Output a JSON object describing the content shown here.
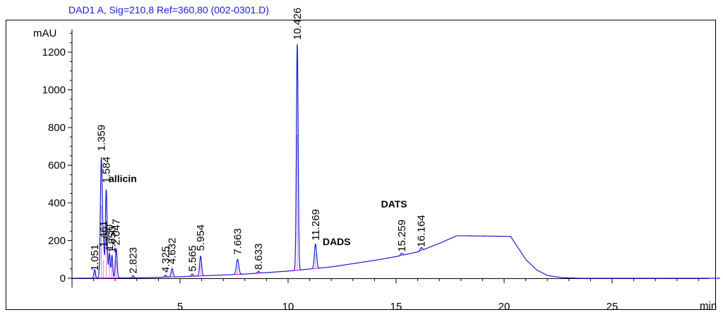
{
  "chart_data": {
    "type": "line",
    "title": "DAD1 A, Sig=210,8 Ref=360,80 (002-0301.D)",
    "xlabel": "min",
    "ylabel": "mAU",
    "xlim": [
      0,
      30
    ],
    "ylim": [
      -50,
      1320
    ],
    "xticks": [
      5,
      10,
      15,
      20,
      25
    ],
    "yticks": [
      0,
      200,
      400,
      600,
      800,
      1000,
      1200
    ],
    "grid": false,
    "colors": {
      "trace": "#1a1ad2",
      "baseline": "#cc00cc",
      "title": "#1a1ad2"
    },
    "series": [
      {
        "values": {
          "baseline": [
            [
              0,
              0
            ],
            [
              3,
              2
            ],
            [
              5,
              8
            ],
            [
              8,
              22
            ],
            [
              10,
              38
            ],
            [
              12,
              60
            ],
            [
              14,
              95
            ],
            [
              15,
              115
            ],
            [
              16,
              140
            ],
            [
              17,
              185
            ],
            [
              17.8,
              225
            ],
            [
              18.3,
              225
            ],
            [
              20.3,
              222
            ],
            [
              20.6,
              170
            ],
            [
              21,
              100
            ],
            [
              21.5,
              45
            ],
            [
              22,
              15
            ],
            [
              22.7,
              3
            ],
            [
              23.5,
              0
            ],
            [
              30,
              0
            ]
          ],
          "peaks": [
            {
              "rt": 1.051,
              "height": 45,
              "w": 0.035
            },
            {
              "rt": 1.359,
              "height": 640,
              "w": 0.045
            },
            {
              "rt": 1.461,
              "height": 160,
              "w": 0.03
            },
            {
              "rt": 1.584,
              "height": 470,
              "w": 0.04
            },
            {
              "rt": 1.73,
              "height": 130,
              "w": 0.035
            },
            {
              "rt": 1.85,
              "height": 120,
              "w": 0.035
            },
            {
              "rt": 2.047,
              "height": 155,
              "w": 0.04
            },
            {
              "rt": 2.823,
              "height": 12,
              "w": 0.04
            },
            {
              "rt": 4.325,
              "height": 10,
              "w": 0.04
            },
            {
              "rt": 4.632,
              "height": 45,
              "w": 0.045
            },
            {
              "rt": 5.565,
              "height": 12,
              "w": 0.04
            },
            {
              "rt": 5.954,
              "height": 105,
              "w": 0.045
            },
            {
              "rt": 7.663,
              "height": 80,
              "w": 0.055
            },
            {
              "rt": 8.633,
              "height": 10,
              "w": 0.045
            },
            {
              "rt": 10.426,
              "height": 1200,
              "w": 0.04
            },
            {
              "rt": 11.269,
              "height": 130,
              "w": 0.05
            },
            {
              "rt": 15.259,
              "height": 12,
              "w": 0.05
            },
            {
              "rt": 16.164,
              "height": 15,
              "w": 0.05
            }
          ]
        }
      }
    ],
    "peak_labels": [
      {
        "text": "1.051",
        "x": 1.051,
        "y": 25
      },
      {
        "text": "1.359",
        "x": 1.359,
        "y": 660
      },
      {
        "text": "1.461",
        "x": 1.461,
        "y": 150
      },
      {
        "text": "1.584",
        "x": 1.584,
        "y": 490
      },
      {
        "text": "1.730",
        "x": 1.73,
        "y": 130
      },
      {
        "text": "1.850",
        "x": 1.85,
        "y": 120
      },
      {
        "text": "2.047",
        "x": 2.047,
        "y": 160
      },
      {
        "text": "2.823",
        "x": 2.823,
        "y": 10
      },
      {
        "text": "4.325",
        "x": 4.325,
        "y": 15
      },
      {
        "text": "4.632",
        "x": 4.632,
        "y": 60
      },
      {
        "text": "5.565",
        "x": 5.565,
        "y": 20
      },
      {
        "text": "5.954",
        "x": 5.954,
        "y": 130
      },
      {
        "text": "7.663",
        "x": 7.663,
        "y": 110
      },
      {
        "text": "8.633",
        "x": 8.633,
        "y": 30
      },
      {
        "text": "10.426",
        "x": 10.426,
        "y": 1250
      },
      {
        "text": "11.269",
        "x": 11.269,
        "y": 185
      },
      {
        "text": "15.259",
        "x": 15.259,
        "y": 125
      },
      {
        "text": "16.164",
        "x": 16.164,
        "y": 150
      }
    ],
    "annotations": [
      {
        "text": "allicin",
        "x": 1.7,
        "y": 510
      },
      {
        "text": "DADS",
        "x": 11.6,
        "y": 175
      },
      {
        "text": "DATS",
        "x": 14.3,
        "y": 375
      }
    ]
  }
}
